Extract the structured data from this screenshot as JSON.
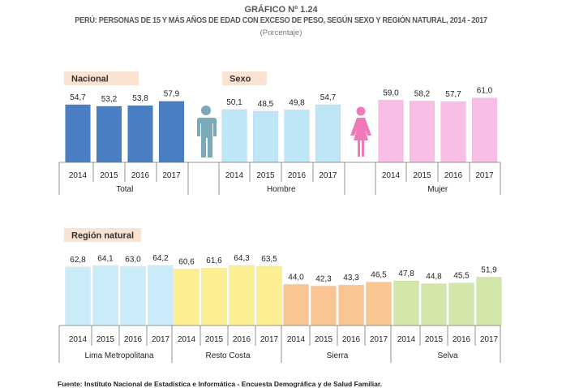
{
  "header": {
    "number": "GRÁFICO Nº 1.24",
    "title": "PERÚ: PERSONAS DE 15 Y MÁS AÑOS DE EDAD CON EXCESO DE PESO, SEGÚN SEXO Y REGIÓN NATURAL, 2014 - 2017",
    "subtitle": "(Porcentaje)"
  },
  "footer": {
    "source": "Fuente: Instituto Nacional de Estadística e Informática - Encuesta Demográfica y de Salud Familiar."
  },
  "icons": [
    "man-icon",
    "woman-icon"
  ],
  "chart_data": [
    {
      "type": "bar",
      "panel_label": "Nacional",
      "categories": [
        "2014",
        "2015",
        "2016",
        "2017"
      ],
      "group": "Total",
      "values": [
        54.7,
        53.2,
        53.8,
        57.9
      ],
      "value_labels": [
        "54,7",
        "53,2",
        "53,8",
        "57,9"
      ],
      "color": "#4a7ec3"
    },
    {
      "type": "bar",
      "panel_label": "Sexo",
      "categories": [
        "2014",
        "2015",
        "2016",
        "2017"
      ],
      "series": [
        {
          "group": "Hombre",
          "values": [
            50.1,
            48.5,
            49.8,
            54.7
          ],
          "value_labels": [
            "50,1",
            "48,5",
            "49,8",
            "54,7"
          ],
          "color": "#bfe6f6"
        },
        {
          "group": "Mujer",
          "values": [
            59.0,
            58.2,
            57.7,
            61.0
          ],
          "value_labels": [
            "59,0",
            "58,2",
            "57,7",
            "61,0"
          ],
          "color": "#f8bfe6"
        }
      ]
    },
    {
      "type": "bar",
      "panel_label": "Región natural",
      "categories": [
        "2014",
        "2015",
        "2016",
        "2017"
      ],
      "series": [
        {
          "group": "Lima Metropolitana",
          "values": [
            62.8,
            64.1,
            63.0,
            64.2
          ],
          "value_labels": [
            "62,8",
            "64,1",
            "63,0",
            "64,2"
          ],
          "color": "#c9ecf8"
        },
        {
          "group": "Resto Costa",
          "values": [
            60.6,
            61.6,
            64.3,
            63.5
          ],
          "value_labels": [
            "60,6",
            "61,6",
            "64,3",
            "63,5"
          ],
          "color": "#fbee93"
        },
        {
          "group": "Sierra",
          "values": [
            44.0,
            42.3,
            43.3,
            46.5
          ],
          "value_labels": [
            "44,0",
            "42,3",
            "43,3",
            "46,5"
          ],
          "color": "#f9c592"
        },
        {
          "group": "Selva",
          "values": [
            47.8,
            44.8,
            45.5,
            51.9
          ],
          "value_labels": [
            "47,8",
            "44,8",
            "45,5",
            "51,9"
          ],
          "color": "#d2e7a9"
        }
      ]
    }
  ]
}
